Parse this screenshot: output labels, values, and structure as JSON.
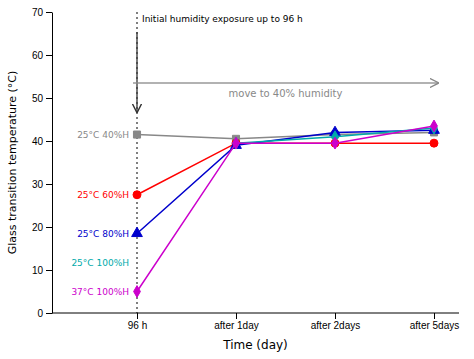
{
  "chart_data": {
    "type": "line",
    "categories": [
      "96 h",
      "after 1day",
      "after 2days",
      "after 5days"
    ],
    "xlabel": "Time (day)",
    "ylabel": "Glass transition temperature (°C)",
    "ylim": [
      0,
      70
    ],
    "yticks": [
      0,
      10,
      20,
      30,
      40,
      50,
      60,
      70
    ],
    "grid": false,
    "series": [
      {
        "name": "25°C 40%H",
        "color": "#888888",
        "marker": "square",
        "values": [
          41.5,
          40.5,
          41.5,
          42.0
        ]
      },
      {
        "name": "25°C 60%H",
        "color": "#ff0000",
        "marker": "circle",
        "values": [
          27.5,
          39.5,
          39.5,
          39.5
        ]
      },
      {
        "name": "25°C 80%H",
        "color": "#0000cc",
        "marker": "triangle",
        "values": [
          18.5,
          39.0,
          42.0,
          42.5
        ]
      },
      {
        "name": "25°C 100%H",
        "color": "#00aaaa",
        "marker": "diamond",
        "values": [
          null,
          39.5,
          41.0,
          43.0
        ]
      },
      {
        "name": "37°C 100%H",
        "color": "#cc00cc",
        "marker": "diamond",
        "values": [
          5.0,
          39.5,
          39.5,
          43.5
        ]
      }
    ],
    "annotations": [
      {
        "text": "Initial humidity exposure up to 96 h"
      },
      {
        "text": "move to 40% humidity"
      }
    ]
  }
}
